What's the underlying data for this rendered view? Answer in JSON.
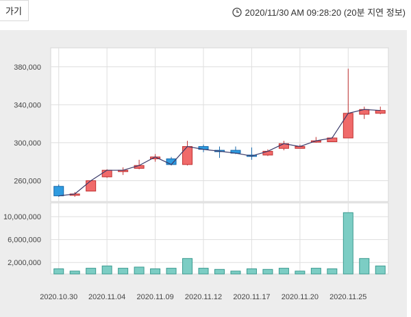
{
  "header": {
    "tab_label": "가기",
    "timestamp": "2020/11/30 AM 09:28:20 (20분 지연 정보)",
    "clock_icon": "clock-icon"
  },
  "colors": {
    "up": "#f06a6a",
    "up_border": "#c03030",
    "down": "#2e9be0",
    "down_border": "#1566a8",
    "volume": "#7ccdc4",
    "volume_border": "#3a9a8f",
    "line": "#3a3a6a",
    "background": "#ededed",
    "plot_bg": "#ffffff",
    "grid": "#dedede"
  },
  "chart_data": [
    {
      "type": "candlestick",
      "yticks": [
        380000,
        340000,
        300000,
        260000
      ],
      "ytick_labels": [
        "380,000",
        "340,000",
        "300,000",
        "260,000"
      ],
      "ylim": [
        238000,
        400000
      ],
      "grid": true,
      "series": [
        {
          "o": 254000,
          "h": 256000,
          "c": 244000,
          "l": 243000
        },
        {
          "o": 245000,
          "h": 248000,
          "c": 246000,
          "l": 243000
        },
        {
          "o": 249000,
          "h": 260000,
          "c": 260000,
          "l": 249000
        },
        {
          "o": 264000,
          "h": 272000,
          "c": 271000,
          "l": 263000
        },
        {
          "o": 271000,
          "h": 274000,
          "c": 271000,
          "l": 266000
        },
        {
          "o": 273000,
          "h": 282000,
          "c": 276000,
          "l": 272000
        },
        {
          "o": 283000,
          "h": 288000,
          "c": 285000,
          "l": 280000
        },
        {
          "o": 283000,
          "h": 285000,
          "c": 277000,
          "l": 276000
        },
        {
          "o": 277000,
          "h": 302000,
          "c": 296000,
          "l": 276000
        },
        {
          "o": 296000,
          "h": 298000,
          "c": 293000,
          "l": 290000
        },
        {
          "o": 292000,
          "h": 296000,
          "c": 291000,
          "l": 284000
        },
        {
          "o": 292000,
          "h": 296000,
          "c": 289000,
          "l": 288000
        },
        {
          "o": 287000,
          "h": 295000,
          "c": 286000,
          "l": 282000
        },
        {
          "o": 287000,
          "h": 293000,
          "c": 291000,
          "l": 286000
        },
        {
          "o": 294000,
          "h": 302000,
          "c": 299000,
          "l": 292000
        },
        {
          "o": 294000,
          "h": 298000,
          "c": 296000,
          "l": 294000
        },
        {
          "o": 301000,
          "h": 306000,
          "c": 302000,
          "l": 300000
        },
        {
          "o": 301000,
          "h": 306000,
          "c": 305000,
          "l": 301000
        },
        {
          "o": 305000,
          "h": 378000,
          "c": 331000,
          "l": 305000
        },
        {
          "o": 330000,
          "h": 338000,
          "c": 335000,
          "l": 325000
        },
        {
          "o": 331000,
          "h": 338000,
          "c": 334000,
          "l": 330000
        }
      ],
      "line": true
    },
    {
      "type": "bar",
      "yticks": [
        10000000,
        6000000,
        2000000
      ],
      "ytick_labels": [
        "10,000,000",
        "6,000,000",
        "2,000,000"
      ],
      "ylim": [
        0,
        12400000
      ],
      "values": [
        900000,
        500000,
        1000000,
        1400000,
        1000000,
        1200000,
        900000,
        1000000,
        2700000,
        1000000,
        800000,
        500000,
        900000,
        800000,
        1000000,
        500000,
        1000000,
        900000,
        10700000,
        2700000,
        1400000
      ],
      "xtick_labels": [
        "2020.10.30",
        "2020.11.04",
        "2020.11.09",
        "2020.11.12",
        "2020.11.17",
        "2020.11.20",
        "2020.11.25"
      ],
      "xtick_index": [
        0,
        3,
        6,
        9,
        12,
        15,
        18
      ],
      "grid": true
    }
  ]
}
